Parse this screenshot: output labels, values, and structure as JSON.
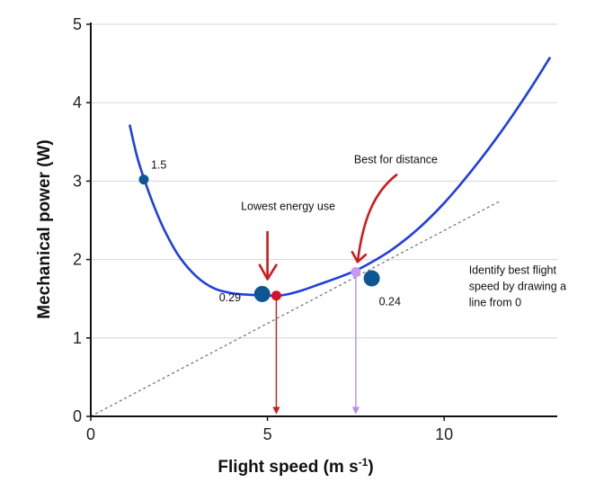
{
  "chart_data": {
    "type": "line",
    "xlabel": "Flight speed (m s",
    "xlabel_sup": "-1",
    "xlabel_end": ")",
    "ylabel": "Mechanical power (W)",
    "xlim": [
      0,
      13.2
    ],
    "ylim": [
      0,
      5
    ],
    "xticks": [
      "0",
      "5",
      "10"
    ],
    "xtick_values": [
      0,
      5,
      10
    ],
    "yticks": [
      "0",
      "1",
      "2",
      "3",
      "4",
      "5"
    ],
    "ytick_values": [
      0,
      1,
      2,
      3,
      4,
      5
    ],
    "grid": "horizontal",
    "curve": {
      "color": "#1f3fe0",
      "x": [
        1.1,
        1.3,
        1.5,
        1.8,
        2.1,
        2.5,
        3.0,
        3.5,
        4.0,
        4.5,
        5.0,
        5.3,
        5.6,
        6.0,
        6.5,
        7.0,
        7.5,
        8.0,
        8.5,
        9.0,
        9.5,
        10.0,
        10.5,
        11.0,
        11.5,
        12.0,
        12.5,
        13.0
      ],
      "y": [
        3.72,
        3.33,
        3.04,
        2.67,
        2.36,
        2.04,
        1.78,
        1.63,
        1.57,
        1.55,
        1.54,
        1.54,
        1.56,
        1.61,
        1.69,
        1.77,
        1.86,
        1.98,
        2.12,
        2.29,
        2.49,
        2.72,
        2.98,
        3.26,
        3.56,
        3.88,
        4.22,
        4.58
      ]
    },
    "tangent_line": {
      "x": [
        0,
        11.6
      ],
      "y": [
        0,
        2.75
      ],
      "color": "#777777",
      "style": "dashed"
    },
    "points": [
      {
        "x": 1.5,
        "y": 3.02,
        "color": "#0d5694",
        "size": "small",
        "label": "1.5"
      },
      {
        "x": 4.85,
        "y": 1.56,
        "color": "#0d5694",
        "size": "large",
        "label": "0.29"
      },
      {
        "x": 5.25,
        "y": 1.54,
        "color": "#d4102c",
        "size": "medium",
        "label": ""
      },
      {
        "x": 7.5,
        "y": 1.84,
        "color": "#c79af0",
        "size": "medium",
        "label": ""
      },
      {
        "x": 7.95,
        "y": 1.76,
        "color": "#0d5694",
        "size": "large",
        "label": "0.24"
      }
    ],
    "drop_lines": [
      {
        "x": 5.25,
        "y": 1.54,
        "color": "#cc1c1c"
      },
      {
        "x": 7.5,
        "y": 1.84,
        "color": "#b58de8"
      }
    ],
    "annotations": {
      "lowest_energy": "Lowest energy use",
      "best_distance": "Best for distance",
      "identify": [
        "Identify best flight",
        "speed by drawing a",
        "line from 0"
      ]
    },
    "annotation_arrow_color": "#cc1c1c"
  }
}
